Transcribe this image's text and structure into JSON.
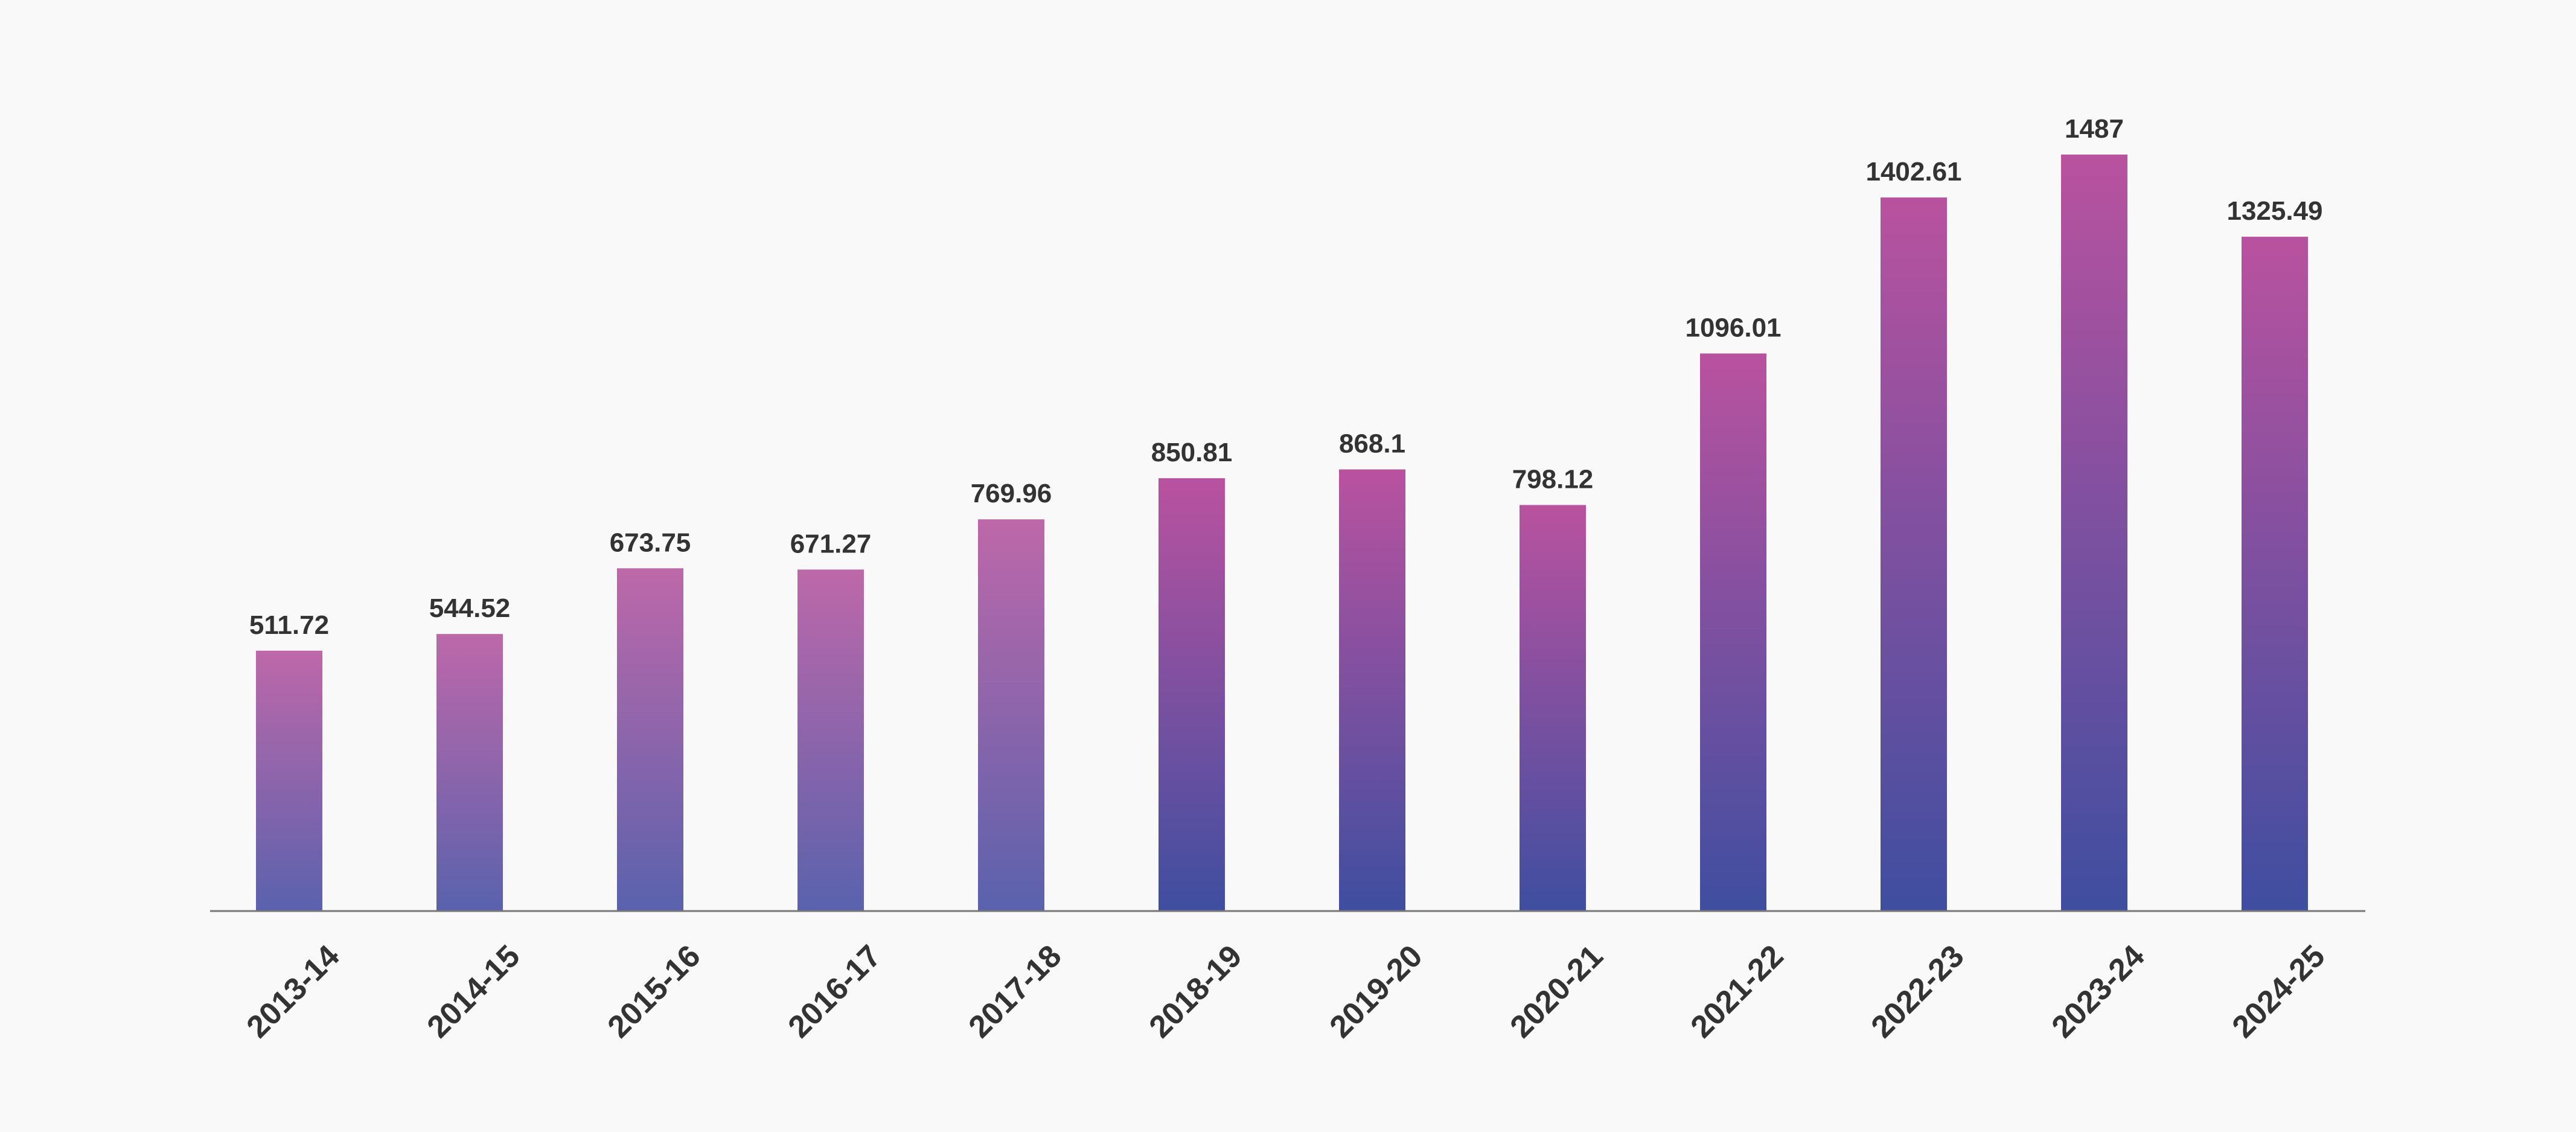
{
  "chart_data": {
    "type": "bar",
    "title": "",
    "xlabel": "",
    "ylabel": "",
    "categories": [
      "2013-14",
      "2014-15",
      "2015-16",
      "2016-17",
      "2017-18",
      "2018-19",
      "2019-20",
      "2020-21",
      "2021-22",
      "2022-23",
      "2023-24",
      "2024-25"
    ],
    "values": [
      511.72,
      544.52,
      673.75,
      671.27,
      769.96,
      850.81,
      868.1,
      798.12,
      1096.01,
      1402.61,
      1487,
      1325.49
    ],
    "data_labels": [
      "511.72",
      "544.52",
      "673.75",
      "671.27",
      "769.96",
      "850.81",
      "868.1",
      "798.12",
      "1096.01",
      "1402.61",
      "1487",
      "1325.49"
    ],
    "ylim": [
      0,
      1487
    ],
    "grid": false,
    "legend": "none",
    "tick_label_rotation": -45,
    "colors": {
      "background": "#f9f9f9",
      "bar_top": "#b9529f",
      "bar_bottom": "#3f4ea0",
      "bar_top_early": "#bd68a9",
      "bar_bottom_early": "#5a62ad",
      "axis": "#777777",
      "text": "#333333"
    }
  }
}
